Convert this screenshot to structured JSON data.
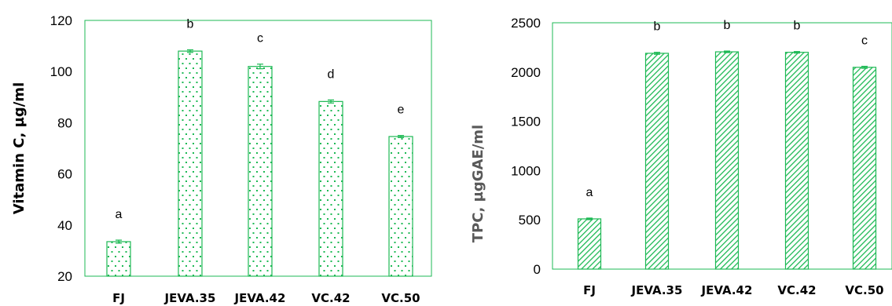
{
  "colors": {
    "bar_stroke": "#1db954",
    "frame": "#1db954",
    "pattern": "#1db954",
    "right_ylabel": "#595959"
  },
  "chart_data": [
    {
      "type": "bar",
      "pattern": "dots",
      "categories": [
        "FJ",
        "JEVA.35",
        "JEVA.42",
        "VC.42",
        "VC.50"
      ],
      "values": [
        33.5,
        108.0,
        102.0,
        88.3,
        74.6
      ],
      "errors": [
        0.6,
        0.5,
        0.9,
        0.6,
        0.4
      ],
      "significance": [
        "a",
        "b",
        "c",
        "d",
        "e"
      ],
      "ylabel": "Vitamin C, µg/ml",
      "ylim": [
        20,
        120
      ],
      "yticks": [
        20,
        40,
        60,
        80,
        100,
        120
      ],
      "grid": false,
      "legend": "none"
    },
    {
      "type": "bar",
      "pattern": "diagonal-hatch",
      "categories": [
        "FJ",
        "JEVA.35",
        "JEVA.42",
        "VC.42",
        "VC.50"
      ],
      "values": [
        510,
        2190,
        2205,
        2200,
        2048
      ],
      "errors": [
        8,
        10,
        8,
        8,
        10
      ],
      "significance": [
        "a",
        "b",
        "b",
        "b",
        "c"
      ],
      "ylabel": "TPC, µgGAE/ml",
      "ylim": [
        0,
        2500
      ],
      "yticks": [
        0,
        500,
        1000,
        1500,
        2000,
        2500
      ],
      "grid": false,
      "legend": "none"
    }
  ]
}
